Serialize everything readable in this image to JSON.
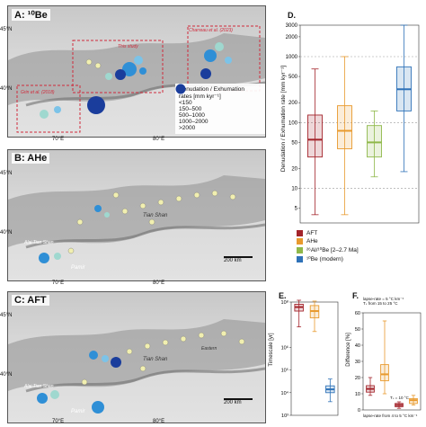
{
  "panels": {
    "a": {
      "title": "A: ¹⁰Be",
      "lat_labels": [
        "45°N",
        "40°N"
      ],
      "lon_labels": [
        "70°E",
        "80°E"
      ],
      "annotations": [
        "This study",
        "Charreau et al. (2023)",
        "Grin et al. (2018)"
      ]
    },
    "b": {
      "title": "B: AHe",
      "lat_labels": [
        "45°N",
        "40°N"
      ],
      "lon_labels": [
        "70°E",
        "80°E"
      ],
      "place_labels": [
        "Tian Shan",
        "Pamir",
        "Alai Tian Shan"
      ],
      "scale": "200 km"
    },
    "c": {
      "title": "C: AFT",
      "lat_labels": [
        "45°N",
        "40°N"
      ],
      "lon_labels": [
        "70°E",
        "80°E"
      ],
      "place_labels": [
        "Tian Shan",
        "Pamir",
        "Eastern",
        "Alai Tian Shan"
      ],
      "scale": "200 km"
    }
  },
  "map_legend": {
    "title_line1": "Denudation / Exhumation",
    "title_line2": "rates [mm kyr⁻¹]",
    "items": [
      "<150",
      "150–500",
      "500–1000",
      "1000–2000",
      ">2000"
    ]
  },
  "colors": {
    "aft": "#a3242b",
    "ahe": "#e89a2e",
    "al_be": "#8fb84a",
    "be": "#2f72b8",
    "blue_dark": "#1a3d9c",
    "blue_mid": "#2f8fd6",
    "blue_light": "#7cc3e8",
    "teal": "#9fd8cf",
    "pale": "#f1efb0"
  },
  "chart_data": [
    {
      "type": "box",
      "panel": "D.",
      "ylabel": "Denudation / Exhumation rate [mm kyr⁻¹]",
      "yscale": "log",
      "ylim": [
        3,
        3000
      ],
      "yticks": [
        5,
        10,
        20,
        50,
        100,
        200,
        500,
        1000,
        2000,
        3000
      ],
      "reference_lines": [
        10,
        100,
        1000
      ],
      "series": [
        {
          "name": "AFT",
          "color": "#a3242b",
          "min": 4,
          "q1": 30,
          "median": 55,
          "q3": 130,
          "max": 650
        },
        {
          "name": "AHe",
          "color": "#e89a2e",
          "min": 4,
          "q1": 40,
          "median": 75,
          "q3": 180,
          "max": 1000
        },
        {
          "name": "²⁶Al/¹⁰Be [2–2.7 Ma]",
          "color": "#8fb84a",
          "min": 15,
          "q1": 30,
          "median": 50,
          "q3": 90,
          "max": 150
        },
        {
          "name": "¹⁰Be (modern)",
          "color": "#2f72b8",
          "min": 18,
          "q1": 150,
          "median": 320,
          "q3": 700,
          "max": 3000
        }
      ],
      "legend": [
        "AFT",
        "AHe",
        "²⁶Al/¹⁰Be [2–2.7 Ma]",
        "¹⁰Be (modern)"
      ]
    },
    {
      "type": "box",
      "panel": "E.",
      "ylabel": "Timescale [yr]",
      "yscale": "log",
      "ylim": [
        1000,
        100000000
      ],
      "ytick_labels": [
        "10³",
        "10⁴",
        "10⁵",
        "10⁶",
        "10⁸"
      ],
      "series": [
        {
          "name": "AFT",
          "color": "#a3242b",
          "q1": 40000000,
          "median": 60000000,
          "q3": 80000000,
          "min": 8000000,
          "max": 120000000
        },
        {
          "name": "AHe",
          "color": "#e89a2e",
          "q1": 20000000,
          "median": 40000000,
          "q3": 70000000,
          "min": 5000000,
          "max": 110000000
        },
        {
          "name": "¹⁰Be",
          "color": "#2f72b8",
          "q1": 10000,
          "median": 14000,
          "q3": 20000,
          "min": 4000,
          "max": 40000
        }
      ]
    },
    {
      "type": "box",
      "panel": "F.",
      "ylabel": "Difference [%]",
      "ylim": [
        0,
        60
      ],
      "yticks": [
        0,
        10,
        20,
        30,
        40,
        50,
        60
      ],
      "annotations": [
        "lapse-rate = 5 °C km⁻¹",
        "Tₛ from 15 to 25 °C",
        "Tₛ = 10 °C",
        "lapse-rate from 4 to 5 °C km⁻¹"
      ],
      "series": [
        {
          "name": "AFT",
          "color": "#a3242b",
          "min": 9,
          "q1": 11,
          "median": 13,
          "q3": 15,
          "max": 20
        },
        {
          "name": "AHe",
          "color": "#e89a2e",
          "min": 10,
          "q1": 18,
          "median": 22,
          "q3": 28,
          "max": 55
        },
        {
          "name": "AFT (Tₛ)",
          "color": "#a3242b",
          "min": 1,
          "q1": 2,
          "median": 3,
          "q3": 4,
          "max": 5
        },
        {
          "name": "AHe (Tₛ)",
          "color": "#e89a2e",
          "min": 3,
          "q1": 4,
          "median": 6,
          "q3": 7,
          "max": 9
        }
      ]
    }
  ]
}
